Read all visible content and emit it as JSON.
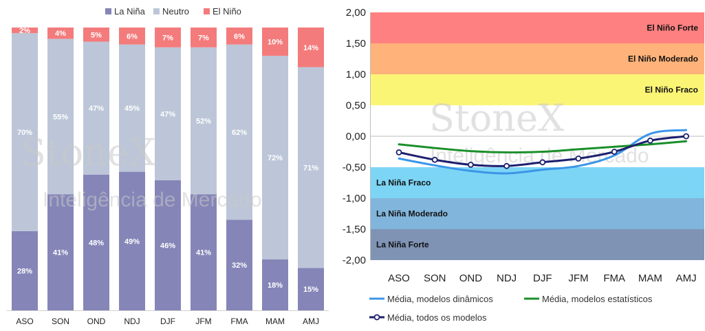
{
  "watermark": {
    "brand": "StoneX",
    "tagline": "Inteligência de Mercado"
  },
  "chart_data": [
    {
      "type": "bar",
      "stacked": true,
      "normalized": true,
      "categories": [
        "ASO",
        "SON",
        "OND",
        "NDJ",
        "DJF",
        "JFM",
        "FMA",
        "MAM",
        "AMJ"
      ],
      "series": [
        {
          "name": "La Niña",
          "color": "#8585b8",
          "values": [
            28,
            41,
            48,
            49,
            46,
            41,
            32,
            18,
            15
          ]
        },
        {
          "name": "Neutro",
          "color": "#bcc6d8",
          "values": [
            70,
            55,
            47,
            45,
            47,
            52,
            62,
            72,
            71
          ]
        },
        {
          "name": "El Niño",
          "color": "#f47b7b",
          "values": [
            2,
            4,
            5,
            6,
            7,
            7,
            6,
            10,
            14
          ]
        }
      ],
      "value_format": "{v}%",
      "ylim": [
        0,
        100
      ],
      "legend_position": "top"
    },
    {
      "type": "line",
      "categories": [
        "ASO",
        "SON",
        "OND",
        "NDJ",
        "DJF",
        "JFM",
        "FMA",
        "MAM",
        "AMJ"
      ],
      "ylim": [
        -2.0,
        2.0
      ],
      "yticks": [
        "2,00",
        "1,50",
        "1,00",
        "0,50",
        "0,00",
        "-0,50",
        "-1,00",
        "-1,50",
        "-2,00"
      ],
      "bands": [
        {
          "label": "El Niño Forte",
          "from": 1.5,
          "to": 2.0,
          "color": "#ff8080"
        },
        {
          "label": "El Niño Moderado",
          "from": 1.0,
          "to": 1.5,
          "color": "#ffb37a"
        },
        {
          "label": "El Niño Fraco",
          "from": 0.5,
          "to": 1.0,
          "color": "#fbf576"
        },
        {
          "label": "La Niña Fraco",
          "from": -1.0,
          "to": -0.5,
          "color": "#7dd5f5"
        },
        {
          "label": "La Niña Moderado",
          "from": -1.5,
          "to": -1.0,
          "color": "#82b5db"
        },
        {
          "label": "La Niña Forte",
          "from": -2.0,
          "to": -1.5,
          "color": "#7f93b5"
        }
      ],
      "series": [
        {
          "name": "Média, modelos dinâmicos",
          "color": "#3a95e8",
          "marker": false,
          "values": [
            -0.36,
            -0.47,
            -0.56,
            -0.6,
            -0.54,
            -0.48,
            -0.31,
            0.04,
            0.1
          ]
        },
        {
          "name": "Média, modelos estatísticos",
          "color": "#1a8f2a",
          "marker": false,
          "values": [
            -0.13,
            -0.19,
            -0.24,
            -0.26,
            -0.25,
            -0.21,
            -0.17,
            -0.13,
            -0.08
          ]
        },
        {
          "name": "Média, todos os modelos",
          "color": "#1c1f6e",
          "marker": true,
          "values": [
            -0.26,
            -0.38,
            -0.46,
            -0.48,
            -0.42,
            -0.36,
            -0.25,
            -0.07,
            0.0
          ]
        }
      ],
      "legend_position": "bottom"
    }
  ]
}
